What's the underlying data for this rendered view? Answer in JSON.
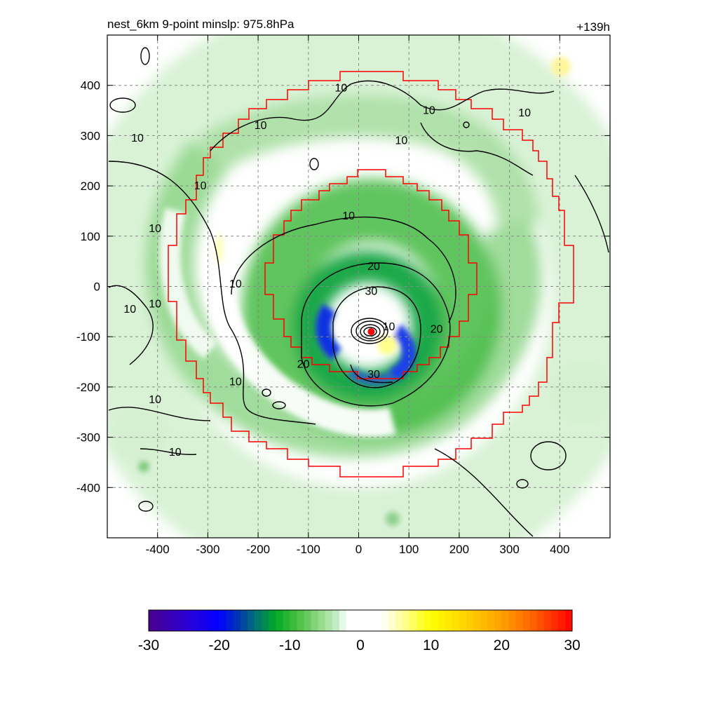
{
  "chart_data": {
    "type": "heatmap",
    "title_left": "nest_6km  9-point minslp: 975.8hPa",
    "title_right": "+139h",
    "xlim": [
      -500,
      500
    ],
    "ylim": [
      -500,
      500
    ],
    "xticks": [
      -400,
      -300,
      -200,
      -100,
      0,
      100,
      200,
      300,
      400
    ],
    "yticks": [
      400,
      300,
      200,
      100,
      0,
      -100,
      -200,
      -300,
      -400
    ],
    "grid": true,
    "center": {
      "x": 25,
      "y": -90
    },
    "contour_labels": [
      {
        "text": "10",
        "x": -440,
        "y": 295
      },
      {
        "text": "10",
        "x": -195,
        "y": 320
      },
      {
        "text": "10",
        "x": -35,
        "y": 395
      },
      {
        "text": "10",
        "x": 140,
        "y": 350
      },
      {
        "text": "10",
        "x": 85,
        "y": 290
      },
      {
        "text": "10",
        "x": 330,
        "y": 345
      },
      {
        "text": "10",
        "x": -315,
        "y": 200
      },
      {
        "text": "10",
        "x": -405,
        "y": 115
      },
      {
        "text": "10",
        "x": -455,
        "y": -45
      },
      {
        "text": "10",
        "x": -405,
        "y": -35
      },
      {
        "text": "10",
        "x": -245,
        "y": -190
      },
      {
        "text": "10",
        "x": -405,
        "y": -225
      },
      {
        "text": "10",
        "x": -365,
        "y": -330
      },
      {
        "text": "10",
        "x": -245,
        "y": 5
      },
      {
        "text": "10",
        "x": -20,
        "y": 140
      },
      {
        "text": "10",
        "x": 60,
        "y": -80
      },
      {
        "text": "20",
        "x": 30,
        "y": 40
      },
      {
        "text": "20",
        "x": 155,
        "y": -85
      },
      {
        "text": "20",
        "x": -110,
        "y": -155
      },
      {
        "text": "30",
        "x": 25,
        "y": -10
      },
      {
        "text": "30",
        "x": 30,
        "y": -175
      }
    ],
    "colorbar": {
      "ticks": [
        -30,
        -20,
        -10,
        0,
        10,
        20,
        30
      ],
      "range": [
        -30,
        30
      ],
      "levels": [
        -30,
        -29,
        -28,
        -27,
        -26,
        -25,
        -24,
        -23,
        -22,
        -21,
        -20,
        -19,
        -18,
        -17,
        -16,
        -15,
        -14,
        -13,
        -12,
        -11,
        -10,
        -9,
        -8,
        -7,
        -6,
        -5,
        -4,
        -3,
        -2,
        -1,
        0,
        1,
        2,
        3,
        4,
        5,
        6,
        7,
        8,
        9,
        10,
        11,
        12,
        13,
        14,
        15,
        16,
        17,
        18,
        19,
        20,
        21,
        22,
        23,
        24,
        25,
        26,
        27,
        28,
        29,
        30
      ]
    },
    "colors": {
      "outer_boundary": "#ff0000",
      "inner_boundary": "#ff0000",
      "center_marker": "#ff0000",
      "contour": "#000000",
      "grid": "#888888"
    }
  }
}
